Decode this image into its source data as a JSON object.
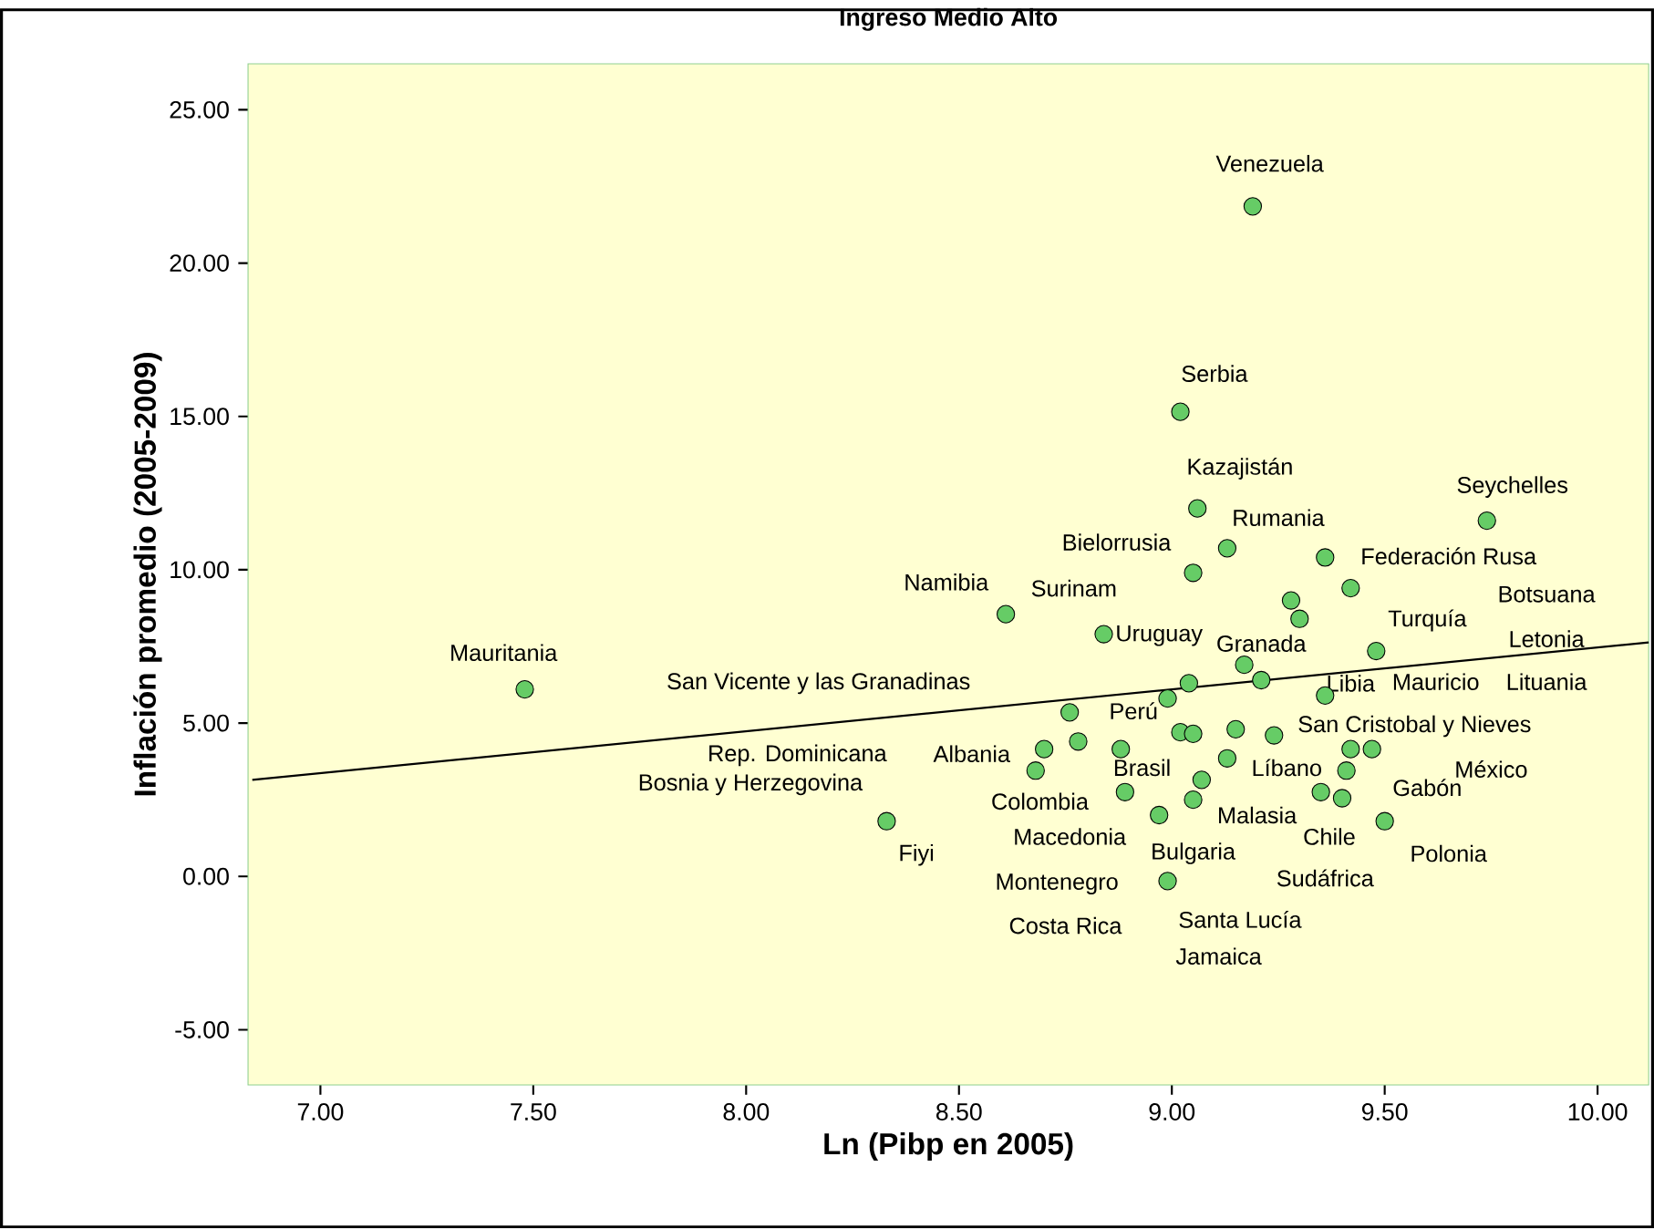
{
  "chart_data": {
    "type": "scatter",
    "title": "Ingreso Medio Alto",
    "xlabel": "Ln (Pibp en 2005)",
    "ylabel": "Inflación promedio (2005-2009)",
    "xlim": [
      6.83,
      10.12
    ],
    "ylim": [
      -6.8,
      26.5
    ],
    "xticks": [
      {
        "value": 7,
        "label": "7.00"
      },
      {
        "value": 7.5,
        "label": "7.50"
      },
      {
        "value": 8,
        "label": "8.00"
      },
      {
        "value": 8.5,
        "label": "8.50"
      },
      {
        "value": 9,
        "label": "9.00"
      },
      {
        "value": 9.5,
        "label": "9.50"
      },
      {
        "value": 10,
        "label": "10.00"
      }
    ],
    "yticks": [
      {
        "value": -5,
        "label": "-5.00"
      },
      {
        "value": 0,
        "label": "0.00"
      },
      {
        "value": 5,
        "label": "5.00"
      },
      {
        "value": 10,
        "label": "10.00"
      },
      {
        "value": 15,
        "label": "15.00"
      },
      {
        "value": 20,
        "label": "20.00"
      },
      {
        "value": 25,
        "label": "25.00"
      }
    ],
    "grid": false,
    "series": [
      {
        "color": "#66cc66",
        "x": [
          9.19,
          9.02,
          9.06,
          9.13,
          9.74,
          9.05,
          9.36,
          9.42,
          8.61,
          9.28,
          9.3,
          8.84,
          9.48,
          9.17,
          9.21,
          9.04,
          8.99,
          9.36,
          8.76,
          9.02,
          9.05,
          9.15,
          9.24,
          9.42,
          9.47,
          8.7,
          8.78,
          8.88,
          8.68,
          9.13,
          9.41,
          9.07,
          8.89,
          9.05,
          9.35,
          9.4,
          8.97,
          9.5,
          8.99,
          8.33,
          7.48
        ],
        "values": [
          21.85,
          15.15,
          12.0,
          10.7,
          11.6,
          9.9,
          10.4,
          9.4,
          8.55,
          9.0,
          8.4,
          7.9,
          7.35,
          6.9,
          6.4,
          6.3,
          5.8,
          5.9,
          5.35,
          4.7,
          4.65,
          4.8,
          4.6,
          4.15,
          4.15,
          4.15,
          4.4,
          4.15,
          3.45,
          3.85,
          3.45,
          3.15,
          2.75,
          2.5,
          2.75,
          2.55,
          2.0,
          1.8,
          -0.15,
          1.8,
          6.1
        ]
      },
      {
        "type": "line",
        "color": "#000000",
        "x": [
          6.84,
          10.12
        ],
        "values": [
          3.15,
          7.63
        ]
      }
    ],
    "annotations": [
      "Venezuela",
      "Serbia",
      "Kazajistán",
      "Rumania",
      "Seychelles",
      "Bielorrusia",
      "Federación Rusa",
      "Namibia",
      "Surinam",
      "Botsuana",
      "Uruguay",
      "Granada",
      "Turquía",
      "Letonia",
      "Mauritania",
      "San Vicente y las Granadinas",
      "Libia",
      "Mauricio",
      "Lituania",
      "Perú",
      "San Cristobal y Nieves",
      "Rep. Dominicana",
      "Albania",
      "Brasil",
      "Líbano",
      "México",
      "Bosnia y Herzegovina",
      "Gabón",
      "Colombia",
      "Malasia",
      "Chile",
      "Macedonia",
      "Fiyi",
      "Bulgaria",
      "Polonia",
      "Sudáfrica",
      "Montenegro",
      "Costa Rica",
      "Santa Lucía",
      "Jamaica"
    ]
  }
}
